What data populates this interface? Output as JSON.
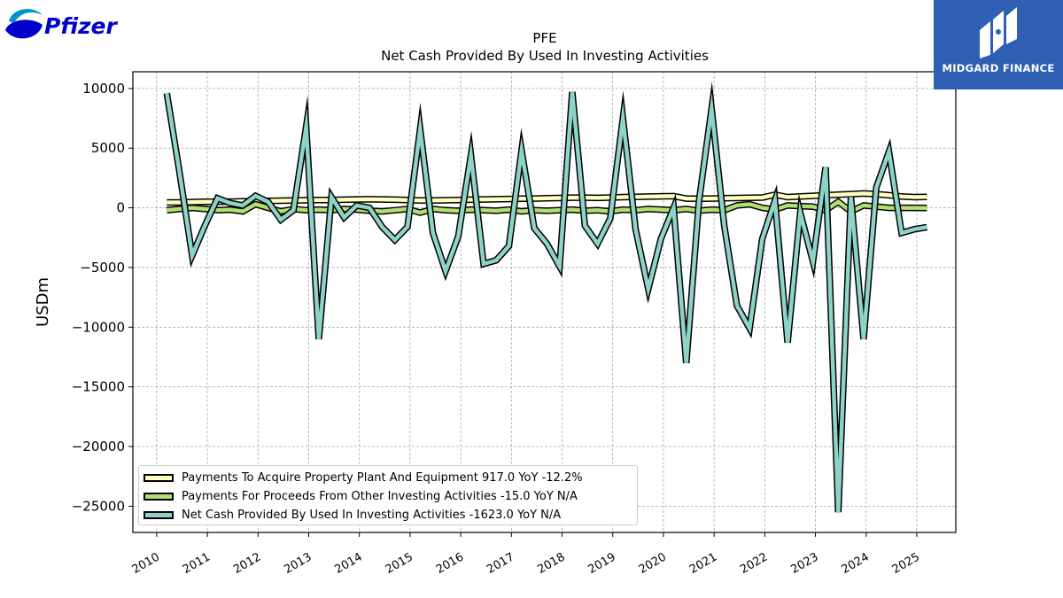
{
  "logos": {
    "left_text": "Pfizer",
    "right_text": "MIDGARD FINANCE",
    "right_bg": "#2f5fb3"
  },
  "chart_data": {
    "type": "line",
    "title": "PFE",
    "subtitle": "Net Cash Provided By Used In Investing Activities",
    "xlabel": "",
    "ylabel": "USDm",
    "xlim": [
      2009.53,
      2025.77
    ],
    "ylim": [
      -27200,
      11400
    ],
    "x_ticks": [
      2010,
      2011,
      2012,
      2013,
      2014,
      2015,
      2016,
      2017,
      2018,
      2019,
      2020,
      2021,
      2022,
      2023,
      2024,
      2025
    ],
    "y_ticks": [
      10000,
      5000,
      0,
      -5000,
      -10000,
      -15000,
      -20000,
      -25000
    ],
    "y_tick_labels": [
      "10000",
      "5000",
      "0",
      "−5000",
      "−10000",
      "−15000",
      "−20000",
      "−25000"
    ],
    "grid": true,
    "legend_position": "lower-left",
    "series": [
      {
        "name": "Payments To Acquire Property Plant And Equipment  917.0 YoY -12.2%",
        "color": "#ffffc0",
        "x": [
          2010.2,
          2010.45,
          2010.7,
          2010.95,
          2011.2,
          2011.45,
          2011.7,
          2011.95,
          2012.2,
          2012.45,
          2012.7,
          2012.95,
          2013.2,
          2013.45,
          2013.7,
          2013.95,
          2014.2,
          2014.45,
          2014.7,
          2014.95,
          2015.2,
          2015.45,
          2015.7,
          2015.95,
          2016.2,
          2016.45,
          2016.7,
          2016.95,
          2017.2,
          2017.45,
          2017.7,
          2017.95,
          2018.2,
          2018.45,
          2018.7,
          2018.95,
          2019.2,
          2019.45,
          2019.7,
          2019.95,
          2020.2,
          2020.45,
          2020.7,
          2020.95,
          2021.2,
          2021.45,
          2021.7,
          2021.95,
          2022.2,
          2022.45,
          2022.7,
          2022.95,
          2023.2,
          2023.45,
          2023.7,
          2023.95,
          2024.2,
          2024.45,
          2024.7,
          2024.95,
          2025.2
        ],
        "y": [
          450,
          450,
          480,
          500,
          520,
          520,
          540,
          560,
          580,
          600,
          620,
          640,
          650,
          660,
          680,
          700,
          720,
          700,
          680,
          650,
          620,
          620,
          640,
          660,
          680,
          700,
          720,
          740,
          760,
          780,
          800,
          820,
          850,
          850,
          830,
          860,
          900,
          920,
          940,
          960,
          980,
          780,
          760,
          780,
          800,
          820,
          840,
          860,
          1100,
          900,
          950,
          1000,
          1050,
          1100,
          1150,
          1200,
          1150,
          1050,
          950,
          900,
          917
        ]
      },
      {
        "name": "Payments For Proceeds From Other Investing Activities  -15.0 YoY N/A",
        "color": "#b3df72",
        "x": [
          2010.2,
          2010.45,
          2010.7,
          2010.95,
          2011.2,
          2011.45,
          2011.7,
          2011.95,
          2012.2,
          2012.45,
          2012.7,
          2012.95,
          2013.2,
          2013.45,
          2013.7,
          2013.95,
          2014.2,
          2014.45,
          2014.7,
          2014.95,
          2015.2,
          2015.45,
          2015.7,
          2015.95,
          2016.2,
          2016.45,
          2016.7,
          2016.95,
          2017.2,
          2017.45,
          2017.7,
          2017.95,
          2018.2,
          2018.45,
          2018.7,
          2018.95,
          2019.2,
          2019.45,
          2019.7,
          2019.95,
          2020.2,
          2020.45,
          2020.7,
          2020.95,
          2021.2,
          2021.45,
          2021.7,
          2021.95,
          2022.2,
          2022.45,
          2022.7,
          2022.95,
          2023.2,
          2023.45,
          2023.7,
          2023.95,
          2024.2,
          2024.45,
          2024.7,
          2024.95,
          2025.2
        ],
        "y": [
          -200,
          -100,
          0,
          -100,
          -200,
          -150,
          -300,
          300,
          0,
          -300,
          -100,
          -200,
          -150,
          -200,
          -100,
          -150,
          -250,
          -300,
          -200,
          -100,
          -400,
          -100,
          -200,
          -250,
          -150,
          -200,
          -250,
          -150,
          -300,
          -200,
          -250,
          -200,
          -150,
          -250,
          -200,
          -300,
          -150,
          -200,
          -100,
          -150,
          -200,
          -100,
          -250,
          -150,
          -200,
          200,
          300,
          0,
          -150,
          200,
          150,
          100,
          -200,
          500,
          -300,
          200,
          100,
          0,
          0,
          0,
          -15
        ]
      },
      {
        "name": "Net Cash Provided By Used In Investing Activities  -1623.0 YoY N/A",
        "color": "#8dd3c7",
        "x": [
          2010.2,
          2010.45,
          2010.7,
          2010.95,
          2011.2,
          2011.45,
          2011.7,
          2011.95,
          2012.2,
          2012.45,
          2012.7,
          2012.95,
          2013.2,
          2013.45,
          2013.7,
          2013.95,
          2014.2,
          2014.45,
          2014.7,
          2014.95,
          2015.2,
          2015.45,
          2015.7,
          2015.95,
          2016.2,
          2016.45,
          2016.7,
          2016.95,
          2017.2,
          2017.45,
          2017.7,
          2017.95,
          2018.2,
          2018.45,
          2018.7,
          2018.95,
          2019.2,
          2019.45,
          2019.7,
          2019.95,
          2020.2,
          2020.45,
          2020.7,
          2020.95,
          2021.2,
          2021.45,
          2021.7,
          2021.95,
          2022.2,
          2022.45,
          2022.7,
          2022.95,
          2023.2,
          2023.45,
          2023.7,
          2023.95,
          2024.2,
          2024.45,
          2024.7,
          2024.95,
          2025.2
        ],
        "y": [
          9600,
          3000,
          -4000,
          -1500,
          800,
          400,
          200,
          1000,
          500,
          -1000,
          -200,
          6800,
          -11000,
          900,
          -800,
          200,
          0,
          -1600,
          -2700,
          -1600,
          6600,
          -2100,
          -5300,
          -2400,
          4400,
          -4700,
          -4400,
          -3200,
          4800,
          -1700,
          -3000,
          -4900,
          9700,
          -1500,
          -3000,
          -900,
          7500,
          -1800,
          -6800,
          -2600,
          0,
          -13000,
          500,
          8300,
          -1500,
          -8200,
          -10100,
          -2600,
          600,
          -11300,
          -400,
          -4500,
          3400,
          -25500,
          900,
          -11000,
          1700,
          4700,
          -2100,
          -1800,
          -1623
        ]
      }
    ]
  }
}
